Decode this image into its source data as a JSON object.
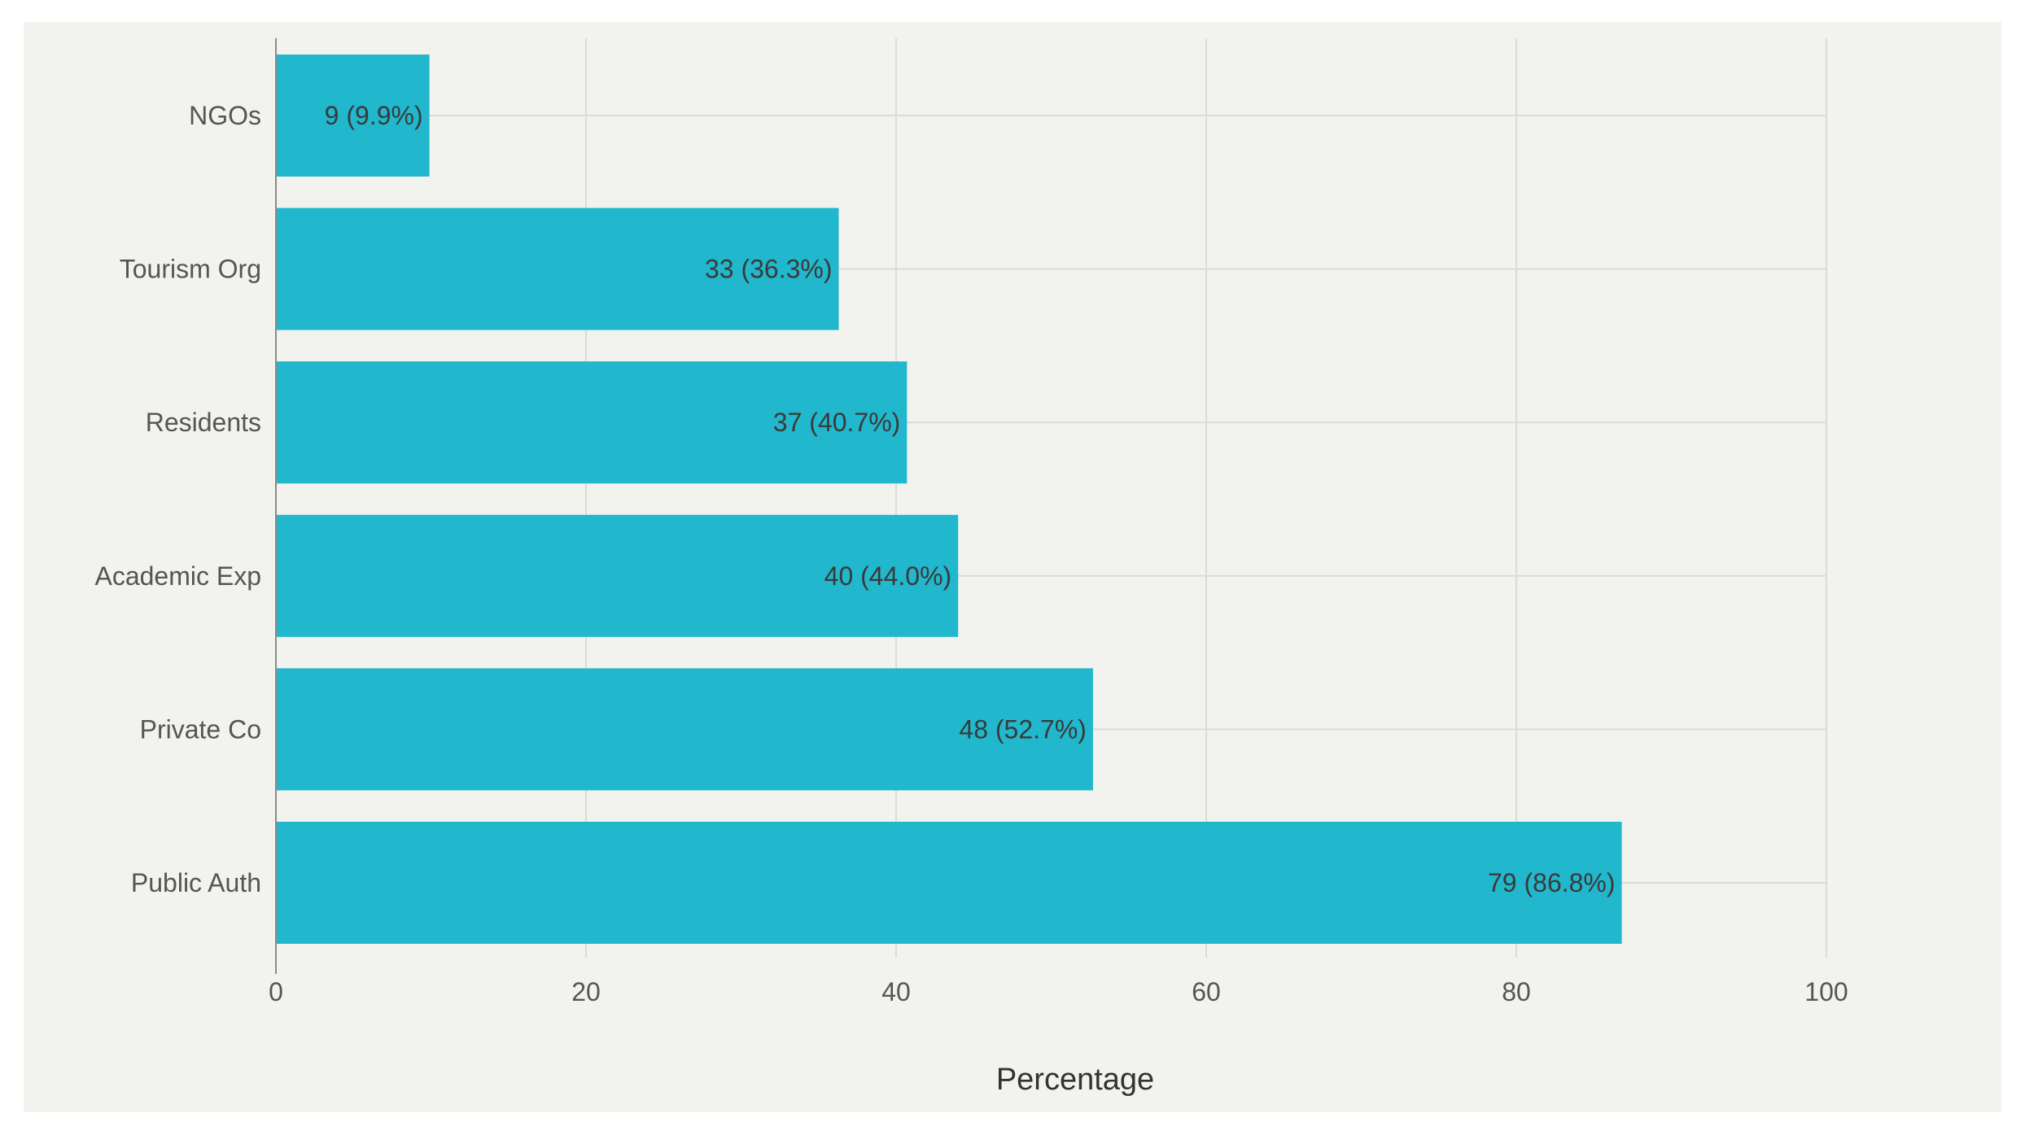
{
  "chart_data": {
    "type": "bar",
    "orientation": "horizontal",
    "categories": [
      "NGOs",
      "Tourism Org",
      "Residents",
      "Academic Exp",
      "Private Co",
      "Public Auth"
    ],
    "counts": [
      9,
      33,
      37,
      40,
      48,
      79
    ],
    "values": [
      9.9,
      36.3,
      40.7,
      44.0,
      52.7,
      86.8
    ],
    "data_labels": [
      "9 (9.9%)",
      "33 (36.3%)",
      "37 (40.7%)",
      "40 (44.0%)",
      "48 (52.7%)",
      "79 (86.8%)"
    ],
    "xlabel": "Percentage",
    "ylabel": "",
    "xlim": [
      0,
      100
    ],
    "xticks": [
      0,
      20,
      40,
      60,
      80,
      100
    ],
    "xtick_labels": [
      "0",
      "20",
      "40",
      "60",
      "80",
      "100"
    ],
    "grid": true,
    "legend": "none",
    "bar_color": "#21b7cc",
    "background_color": "#f2f2ee"
  }
}
